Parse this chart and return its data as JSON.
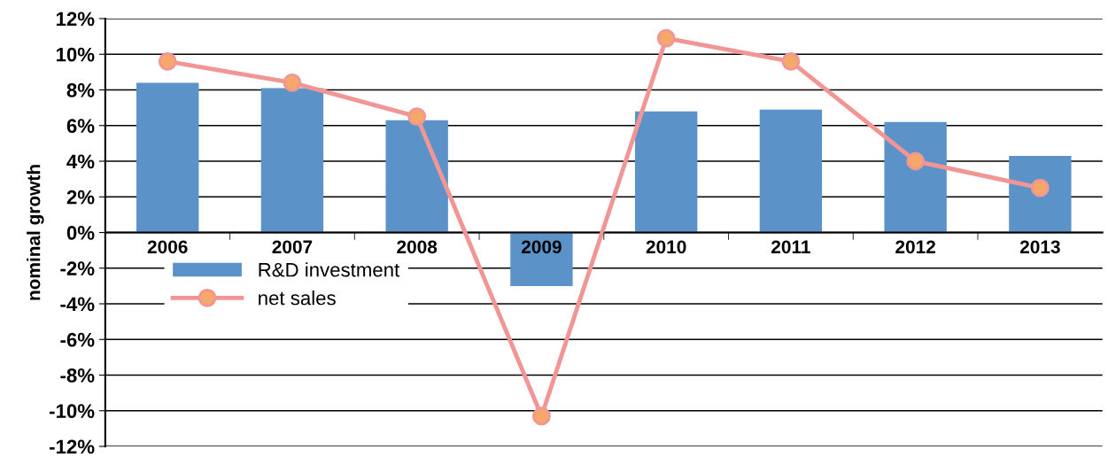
{
  "chart_data": {
    "type": "bar",
    "ylabel": "nominal growth",
    "categories": [
      "2006",
      "2007",
      "2008",
      "2009",
      "2010",
      "2011",
      "2012",
      "2013"
    ],
    "series": [
      {
        "name": "R&D investment",
        "type": "bar",
        "color": "#5b93c9",
        "values": [
          8.4,
          8.1,
          6.3,
          -3.0,
          6.8,
          6.9,
          6.2,
          4.3
        ]
      },
      {
        "name": "net sales",
        "type": "line",
        "color": "#f19595",
        "marker": "circle",
        "values": [
          9.6,
          8.4,
          6.5,
          -10.3,
          10.9,
          9.6,
          4.0,
          2.5
        ]
      }
    ],
    "ylim": [
      -12,
      12
    ],
    "yticks": [
      {
        "value": -12,
        "label": "-12%"
      },
      {
        "value": -10,
        "label": "-10%"
      },
      {
        "value": -8,
        "label": "-8%"
      },
      {
        "value": -6,
        "label": "-6%"
      },
      {
        "value": -4,
        "label": "-4%"
      },
      {
        "value": -2,
        "label": "-2%"
      },
      {
        "value": 0,
        "label": "0%"
      },
      {
        "value": 2,
        "label": "2%"
      },
      {
        "value": 4,
        "label": "4%"
      },
      {
        "value": 6,
        "label": "6%"
      },
      {
        "value": 8,
        "label": "8%"
      },
      {
        "value": 10,
        "label": "10%"
      },
      {
        "value": 12,
        "label": "12%"
      }
    ],
    "grid": "y",
    "legend": "bottom left"
  }
}
